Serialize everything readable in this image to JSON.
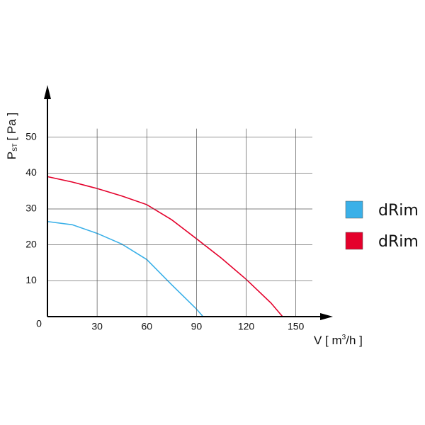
{
  "chart_data": {
    "type": "line",
    "y_label": {
      "main": "P",
      "sub": "ST",
      "unit": "[ Pa ]"
    },
    "x_label": {
      "main": "V [ m",
      "sup": "3",
      "unit": "/h ]"
    },
    "x": [
      0,
      15,
      30,
      45,
      60,
      75,
      90,
      105,
      120,
      135,
      142
    ],
    "series": [
      {
        "name": "dRim",
        "color": "#3ab0e8",
        "values": [
          26.5,
          25.6,
          23.2,
          20.2,
          15.9,
          8.9,
          2.1,
          null,
          null,
          null,
          null
        ]
      },
      {
        "name": "dRim",
        "color": "#e4002b",
        "values": [
          39,
          37.5,
          35.7,
          33.6,
          31.2,
          27,
          21.7,
          16.3,
          10.4,
          3.8,
          0
        ]
      }
    ],
    "end_x": [
      94,
      142
    ],
    "xlim": [
      0,
      160
    ],
    "ylim": [
      0,
      60
    ],
    "xticks": [
      0,
      30,
      60,
      90,
      120,
      150
    ],
    "yticks": [
      10,
      20,
      30,
      40,
      50
    ],
    "grid": true,
    "legend": "right"
  }
}
